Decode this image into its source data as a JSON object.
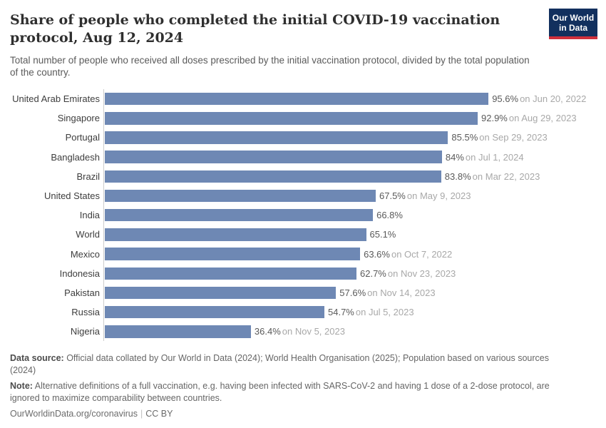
{
  "header": {
    "title_lines": [
      "Share of people who completed the initial COVID-19 vaccination",
      "protocol, Aug 12, 2024"
    ],
    "subtitle_lines": [
      "Total number of people who received all doses prescribed by the initial vaccination protocol, divided by the total population",
      "of the country."
    ],
    "logo": {
      "line1": "Our World",
      "line2": "in Data",
      "bg_color": "#12305e",
      "accent_color": "#cf303c",
      "text_color": "#ffffff"
    }
  },
  "chart_data": {
    "type": "bar",
    "orientation": "horizontal",
    "title": "Share of people who completed the initial COVID-19 vaccination protocol, Aug 12, 2024",
    "subtitle": "Total number of people who received all doses prescribed by the initial vaccination protocol, divided by the total population of the country.",
    "categories": [
      "United Arab Emirates",
      "Singapore",
      "Portugal",
      "Bangladesh",
      "Brazil",
      "United States",
      "India",
      "World",
      "Mexico",
      "Indonesia",
      "Pakistan",
      "Russia",
      "Nigeria"
    ],
    "values": [
      95.6,
      92.9,
      85.5,
      84,
      83.8,
      67.5,
      66.8,
      65.1,
      63.6,
      62.7,
      57.6,
      54.7,
      36.4
    ],
    "value_labels": [
      "95.6%",
      "92.9%",
      "85.5%",
      "84%",
      "83.8%",
      "67.5%",
      "66.8%",
      "65.1%",
      "63.6%",
      "62.7%",
      "57.6%",
      "54.7%",
      "36.4%"
    ],
    "date_labels": [
      "on Jun 20, 2022",
      "on Aug 29, 2023",
      "on Sep 29, 2023",
      "on Jul 1, 2024",
      "on Mar 22, 2023",
      "on May 9, 2023",
      "",
      "",
      "on Oct 7, 2022",
      "on Nov 23, 2023",
      "on Nov 14, 2023",
      "on Jul 5, 2023",
      "on Nov 5, 2023"
    ],
    "xlim": [
      0,
      100
    ],
    "bar_color": "#6e88b4",
    "axis_line_color": "#cccccc",
    "grid": false,
    "legend": "none"
  },
  "footer": {
    "source_label": "Data source:",
    "source_line1": " Official data collated by Our World in Data (2024); World Health Organisation (2025); Population based on various sources",
    "source_line2": "(2024)",
    "note_label": "Note:",
    "note_line1": " Alternative definitions of a full vaccination, e.g. having been infected with SARS-CoV-2 and having 1 dose of a 2-dose protocol, are",
    "note_line2": "ignored to maximize comparability between countries.",
    "url": "OurWorldinData.org/coronavirus",
    "separator": "|",
    "license": "CC BY"
  }
}
